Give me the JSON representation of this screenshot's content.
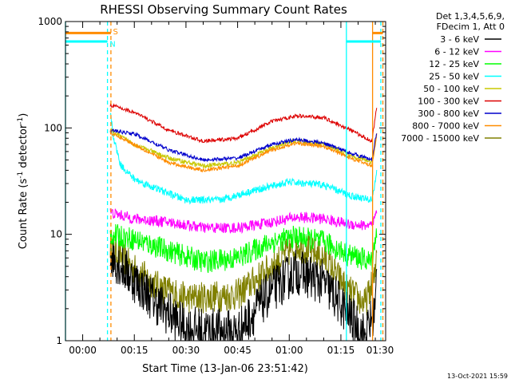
{
  "chart_data": {
    "type": "line",
    "title": "RHESSI Observing Summary Count Rates",
    "xlabel": "Start Time (13-Jan-06 23:51:42)",
    "ylabel_prefix": "Count Rate (s",
    "ylabel_sup1": "-1",
    "ylabel_mid": " detector",
    "ylabel_sup2": "-1",
    "ylabel_suffix": ")",
    "y_scale": "log",
    "ylim": [
      1,
      1000
    ],
    "xlim_min": [
      -5,
      88
    ],
    "x_ticks": [
      {
        "t": 0,
        "label": "00:00"
      },
      {
        "t": 15,
        "label": "00:15"
      },
      {
        "t": 30,
        "label": "00:30"
      },
      {
        "t": 45,
        "label": "00:45"
      },
      {
        "t": 60,
        "label": "01:00"
      },
      {
        "t": 75,
        "label": "01:15"
      },
      {
        "t": 90,
        "label": "01:30"
      }
    ],
    "y_ticks": [
      {
        "v": 1,
        "label": "1"
      },
      {
        "v": 10,
        "label": "10"
      },
      {
        "v": 100,
        "label": "100"
      },
      {
        "v": 1000,
        "label": "1000"
      }
    ],
    "legend": {
      "position": "top-right",
      "header1": "Det 1,3,4,5,6,9,",
      "header2": "FDecim 1, Att 0",
      "entries": [
        {
          "label": "3 - 6 keV",
          "color": "#000000"
        },
        {
          "label": "6 - 12 keV",
          "color": "#ff00ff"
        },
        {
          "label": "12 - 25 keV",
          "color": "#00ff00"
        },
        {
          "label": "25 - 50 keV",
          "color": "#00ffff"
        },
        {
          "label": "50 - 100 keV",
          "color": "#c8c800"
        },
        {
          "label": "100 - 300 keV",
          "color": "#dd0000"
        },
        {
          "label": "300 - 800 keV",
          "color": "#0000cc"
        },
        {
          "label": "800 - 7000 keV",
          "color": "#ff8c00"
        },
        {
          "label": "7000 - 15000 keV",
          "color": "#808000"
        }
      ]
    },
    "series": [
      {
        "name": "7000 - 15000 keV",
        "color": "#808000",
        "baseline": [
          [
            8,
            8
          ],
          [
            14,
            5
          ],
          [
            22,
            3.2
          ],
          [
            30,
            2.5
          ],
          [
            45,
            2.7
          ],
          [
            55,
            5
          ],
          [
            62,
            8
          ],
          [
            70,
            6
          ],
          [
            77,
            3
          ],
          [
            82,
            2.2
          ],
          [
            85,
            4
          ],
          [
            85.5,
            10
          ]
        ],
        "noise": 0.35
      },
      {
        "name": "3 - 6 keV",
        "color": "#000000",
        "baseline": [
          [
            8,
            6.5
          ],
          [
            14,
            4
          ],
          [
            22,
            2.2
          ],
          [
            30,
            1.3
          ],
          [
            45,
            1.2
          ],
          [
            55,
            3
          ],
          [
            62,
            4.5
          ],
          [
            70,
            3.5
          ],
          [
            77,
            1.8
          ],
          [
            82,
            1.1
          ],
          [
            85,
            2
          ],
          [
            85.5,
            5
          ]
        ],
        "noise": 0.5
      },
      {
        "name": "12 - 25 keV",
        "color": "#00ff00",
        "baseline": [
          [
            8,
            10
          ],
          [
            15,
            9
          ],
          [
            25,
            7
          ],
          [
            35,
            5.5
          ],
          [
            45,
            6
          ],
          [
            55,
            8.5
          ],
          [
            62,
            9.5
          ],
          [
            70,
            8.5
          ],
          [
            77,
            6.5
          ],
          [
            84,
            5.5
          ],
          [
            85.5,
            12
          ]
        ],
        "noise": 0.25
      },
      {
        "name": "6 - 12 keV",
        "color": "#ff00ff",
        "baseline": [
          [
            8,
            16
          ],
          [
            15,
            14
          ],
          [
            25,
            13
          ],
          [
            35,
            11.5
          ],
          [
            45,
            11.5
          ],
          [
            55,
            13
          ],
          [
            62,
            14.5
          ],
          [
            70,
            14
          ],
          [
            77,
            12.5
          ],
          [
            84,
            12
          ],
          [
            85.5,
            16
          ]
        ],
        "noise": 0.12
      },
      {
        "name": "25 - 50 keV",
        "color": "#00ffff",
        "baseline": [
          [
            8,
            140
          ],
          [
            9,
            80
          ],
          [
            11,
            45
          ],
          [
            15,
            33
          ],
          [
            20,
            28
          ],
          [
            30,
            21
          ],
          [
            40,
            21
          ],
          [
            50,
            26
          ],
          [
            60,
            31
          ],
          [
            70,
            29
          ],
          [
            78,
            23
          ],
          [
            84,
            21
          ],
          [
            85.5,
            40
          ]
        ],
        "noise": 0.08
      },
      {
        "name": "50 - 100 keV",
        "color": "#c8c800",
        "baseline": [
          [
            8,
            95
          ],
          [
            15,
            70
          ],
          [
            25,
            52
          ],
          [
            35,
            44
          ],
          [
            45,
            47
          ],
          [
            55,
            65
          ],
          [
            62,
            76
          ],
          [
            70,
            70
          ],
          [
            78,
            55
          ],
          [
            84,
            48
          ],
          [
            85.5,
            90
          ]
        ],
        "noise": 0.05
      },
      {
        "name": "800 - 7000 keV",
        "color": "#ff8c00",
        "baseline": [
          [
            8,
            90
          ],
          [
            15,
            70
          ],
          [
            25,
            47
          ],
          [
            35,
            40
          ],
          [
            45,
            44
          ],
          [
            55,
            62
          ],
          [
            62,
            72
          ],
          [
            70,
            67
          ],
          [
            78,
            52
          ],
          [
            84,
            44
          ],
          [
            85.5,
            90
          ]
        ],
        "noise": 0.04
      },
      {
        "name": "300 - 800 keV",
        "color": "#0000cc",
        "baseline": [
          [
            8,
            95
          ],
          [
            15,
            88
          ],
          [
            25,
            62
          ],
          [
            35,
            50
          ],
          [
            45,
            52
          ],
          [
            55,
            70
          ],
          [
            62,
            78
          ],
          [
            70,
            72
          ],
          [
            78,
            58
          ],
          [
            84,
            50
          ],
          [
            85.5,
            95
          ]
        ],
        "noise": 0.04
      },
      {
        "name": "100 - 300 keV",
        "color": "#dd0000",
        "baseline": [
          [
            8,
            165
          ],
          [
            15,
            140
          ],
          [
            25,
            95
          ],
          [
            35,
            75
          ],
          [
            45,
            80
          ],
          [
            55,
            115
          ],
          [
            62,
            130
          ],
          [
            70,
            125
          ],
          [
            78,
            95
          ],
          [
            84,
            75
          ],
          [
            85.5,
            165
          ]
        ],
        "noise": 0.04
      }
    ],
    "markers": [
      {
        "t": -5,
        "color": "#00ffff",
        "style": "solid"
      },
      {
        "t": 7.2,
        "color": "#00ffff",
        "style": "dash"
      },
      {
        "t": 8.2,
        "color": "#ff8c00",
        "style": "dash"
      },
      {
        "t": 76.6,
        "color": "#00ffff",
        "style": "solid"
      },
      {
        "t": 84.2,
        "color": "#ff8c00",
        "style": "solid"
      },
      {
        "t": 86.6,
        "color": "#00ffff",
        "style": "dash"
      },
      {
        "t": 87.2,
        "color": "#ff8c00",
        "style": "dash"
      }
    ],
    "top_bars": [
      {
        "t0": -5,
        "t1": 7.2,
        "color": "#00ffff",
        "level": 650
      },
      {
        "t0": -5,
        "t1": 8.2,
        "color": "#ff8c00",
        "level": 780
      },
      {
        "t0": 76.6,
        "t1": 86.6,
        "color": "#00ffff",
        "level": 650
      },
      {
        "t0": 84.2,
        "t1": 87.2,
        "color": "#ff8c00",
        "level": 780
      }
    ],
    "flags": [
      {
        "text": "S",
        "t": 8.8,
        "color": "#ff8c00",
        "level": 810
      },
      {
        "text": "N",
        "t": 7.8,
        "color": "#00ffff",
        "level": 620
      }
    ]
  },
  "timestamp": "13-Oct-2021 15:59"
}
